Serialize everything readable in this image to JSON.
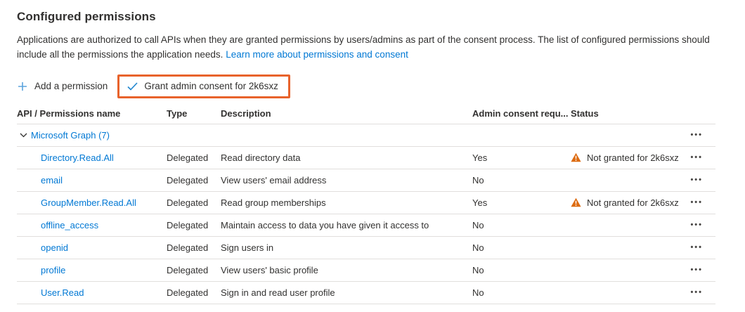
{
  "page": {
    "title": "Configured permissions",
    "description": "Applications are authorized to call APIs when they are granted permissions by users/admins as part of the consent process. The list of configured permissions should include all the permissions the application needs. ",
    "learn_more_link": "Learn more about permissions and consent"
  },
  "toolbar": {
    "add_permission_label": "Add a permission",
    "grant_admin_consent_label": "Grant admin consent for 2k6sxz",
    "plus_icon": "+",
    "check_icon": "✓"
  },
  "table": {
    "headers": {
      "api_name": "API / Permissions name",
      "type": "Type",
      "description": "Description",
      "admin_consent": "Admin consent requ...",
      "status": "Status"
    },
    "group": {
      "name": "Microsoft Graph (7)",
      "chevron_icon": "⌄"
    },
    "row_menu_glyph": "•••",
    "rows": [
      {
        "name": "Directory.Read.All",
        "type": "Delegated",
        "description": "Read directory data",
        "admin_consent": "Yes",
        "warning": true,
        "status": "Not granted for 2k6sxz"
      },
      {
        "name": "email",
        "type": "Delegated",
        "description": "View users' email address",
        "admin_consent": "No",
        "warning": false,
        "status": ""
      },
      {
        "name": "GroupMember.Read.All",
        "type": "Delegated",
        "description": "Read group memberships",
        "admin_consent": "Yes",
        "warning": true,
        "status": "Not granted for 2k6sxz"
      },
      {
        "name": "offline_access",
        "type": "Delegated",
        "description": "Maintain access to data you have given it access to",
        "admin_consent": "No",
        "warning": false,
        "status": ""
      },
      {
        "name": "openid",
        "type": "Delegated",
        "description": "Sign users in",
        "admin_consent": "No",
        "warning": false,
        "status": ""
      },
      {
        "name": "profile",
        "type": "Delegated",
        "description": "View users' basic profile",
        "admin_consent": "No",
        "warning": false,
        "status": ""
      },
      {
        "name": "User.Read",
        "type": "Delegated",
        "description": "Sign in and read user profile",
        "admin_consent": "No",
        "warning": false,
        "status": ""
      }
    ]
  },
  "colors": {
    "link_blue": "#0078d4",
    "text": "#323130",
    "divider": "#e1dfdd",
    "warning_orange": "#dd6b10",
    "highlight_box_orange": "#e8632c",
    "plus_icon_blue": "#5ca3dd",
    "check_icon_blue": "#2086cf"
  }
}
